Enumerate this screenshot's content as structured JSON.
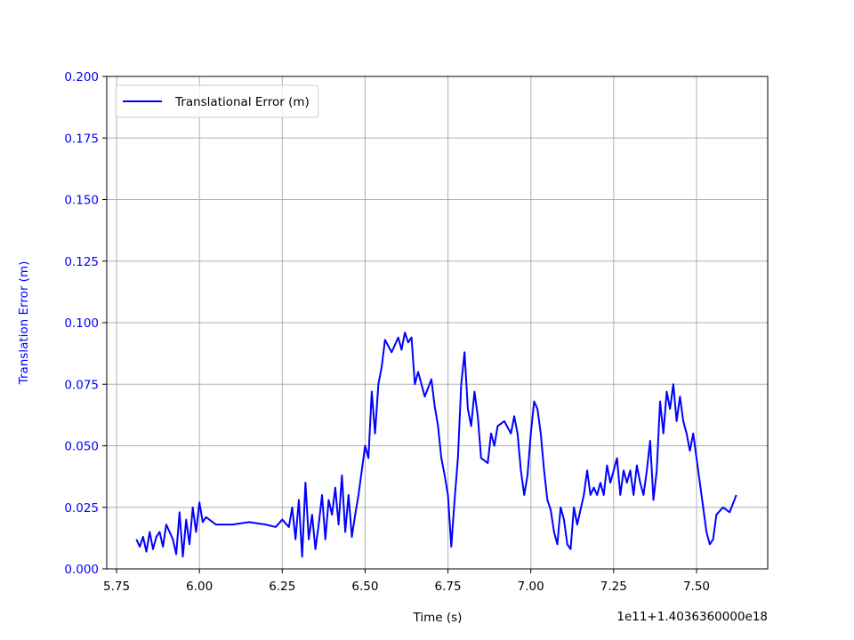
{
  "chart_data": {
    "type": "line",
    "xlabel": "Time (s)",
    "ylabel": "Translation Error (m)",
    "x_offset_text": "1e11+1.4036360000e18",
    "xlim": [
      5.7204,
      7.7148
    ],
    "ylim": [
      0,
      0.2
    ],
    "xticks": [
      {
        "value": 5.75,
        "label": "5.75"
      },
      {
        "value": 6.0,
        "label": "6.00"
      },
      {
        "value": 6.25,
        "label": "6.25"
      },
      {
        "value": 6.5,
        "label": "6.50"
      },
      {
        "value": 6.75,
        "label": "6.75"
      },
      {
        "value": 7.0,
        "label": "7.00"
      },
      {
        "value": 7.25,
        "label": "7.25"
      },
      {
        "value": 7.5,
        "label": "7.50"
      }
    ],
    "yticks": [
      {
        "value": 0,
        "label": "0.000"
      },
      {
        "value": 0.025,
        "label": "0.025"
      },
      {
        "value": 0.05,
        "label": "0.050"
      },
      {
        "value": 0.075,
        "label": "0.075"
      },
      {
        "value": 0.1,
        "label": "0.100"
      },
      {
        "value": 0.125,
        "label": "0.125"
      },
      {
        "value": 0.15,
        "label": "0.150"
      },
      {
        "value": 0.175,
        "label": "0.175"
      },
      {
        "value": 0.2,
        "label": "0.200"
      }
    ],
    "grid": true,
    "legend": "upper-left",
    "axis_label_color": "#0000ff",
    "x": [
      5.81,
      5.82,
      5.83,
      5.84,
      5.85,
      5.86,
      5.87,
      5.88,
      5.89,
      5.9,
      5.92,
      5.93,
      5.94,
      5.95,
      5.96,
      5.97,
      5.98,
      5.99,
      6.0,
      6.01,
      6.02,
      6.05,
      6.1,
      6.15,
      6.2,
      6.23,
      6.25,
      6.27,
      6.28,
      6.29,
      6.3,
      6.31,
      6.32,
      6.33,
      6.34,
      6.35,
      6.36,
      6.37,
      6.38,
      6.39,
      6.4,
      6.41,
      6.42,
      6.43,
      6.44,
      6.45,
      6.46,
      6.47,
      6.48,
      6.49,
      6.5,
      6.51,
      6.52,
      6.53,
      6.54,
      6.55,
      6.56,
      6.58,
      6.6,
      6.61,
      6.62,
      6.63,
      6.64,
      6.65,
      6.66,
      6.68,
      6.7,
      6.71,
      6.72,
      6.73,
      6.74,
      6.75,
      6.76,
      6.77,
      6.78,
      6.79,
      6.8,
      6.81,
      6.82,
      6.83,
      6.84,
      6.85,
      6.87,
      6.88,
      6.89,
      6.9,
      6.92,
      6.94,
      6.95,
      6.96,
      6.97,
      6.98,
      6.99,
      7.0,
      7.01,
      7.02,
      7.03,
      7.04,
      7.05,
      7.06,
      7.07,
      7.08,
      7.09,
      7.1,
      7.11,
      7.12,
      7.13,
      7.14,
      7.16,
      7.17,
      7.18,
      7.19,
      7.2,
      7.21,
      7.22,
      7.23,
      7.24,
      7.25,
      7.26,
      7.27,
      7.28,
      7.29,
      7.3,
      7.31,
      7.32,
      7.33,
      7.34,
      7.35,
      7.36,
      7.37,
      7.38,
      7.39,
      7.4,
      7.41,
      7.42,
      7.43,
      7.44,
      7.45,
      7.46,
      7.47,
      7.48,
      7.49,
      7.5,
      7.51,
      7.52,
      7.53,
      7.54,
      7.55,
      7.56,
      7.58,
      7.6,
      7.62
    ],
    "series": [
      {
        "name": "Translational Error (m)",
        "color": "#0000ff",
        "values": [
          0.012,
          0.009,
          0.013,
          0.007,
          0.015,
          0.008,
          0.013,
          0.015,
          0.009,
          0.018,
          0.012,
          0.006,
          0.023,
          0.005,
          0.02,
          0.01,
          0.025,
          0.015,
          0.027,
          0.019,
          0.021,
          0.018,
          0.018,
          0.019,
          0.018,
          0.017,
          0.02,
          0.017,
          0.025,
          0.012,
          0.028,
          0.005,
          0.035,
          0.012,
          0.022,
          0.008,
          0.018,
          0.03,
          0.012,
          0.028,
          0.022,
          0.033,
          0.018,
          0.038,
          0.015,
          0.03,
          0.013,
          0.022,
          0.03,
          0.04,
          0.05,
          0.045,
          0.072,
          0.055,
          0.075,
          0.082,
          0.093,
          0.088,
          0.094,
          0.089,
          0.096,
          0.092,
          0.094,
          0.075,
          0.08,
          0.07,
          0.077,
          0.066,
          0.058,
          0.045,
          0.038,
          0.03,
          0.009,
          0.028,
          0.045,
          0.075,
          0.088,
          0.065,
          0.058,
          0.072,
          0.062,
          0.045,
          0.043,
          0.055,
          0.05,
          0.058,
          0.06,
          0.055,
          0.062,
          0.055,
          0.04,
          0.03,
          0.038,
          0.055,
          0.068,
          0.065,
          0.055,
          0.04,
          0.028,
          0.024,
          0.015,
          0.01,
          0.025,
          0.02,
          0.01,
          0.008,
          0.025,
          0.018,
          0.03,
          0.04,
          0.03,
          0.033,
          0.03,
          0.035,
          0.03,
          0.042,
          0.035,
          0.04,
          0.045,
          0.03,
          0.04,
          0.035,
          0.04,
          0.03,
          0.042,
          0.035,
          0.03,
          0.04,
          0.052,
          0.028,
          0.04,
          0.068,
          0.055,
          0.072,
          0.065,
          0.075,
          0.06,
          0.07,
          0.06,
          0.055,
          0.048,
          0.055,
          0.045,
          0.035,
          0.025,
          0.015,
          0.01,
          0.012,
          0.022,
          0.025,
          0.023,
          0.03
        ]
      }
    ]
  }
}
